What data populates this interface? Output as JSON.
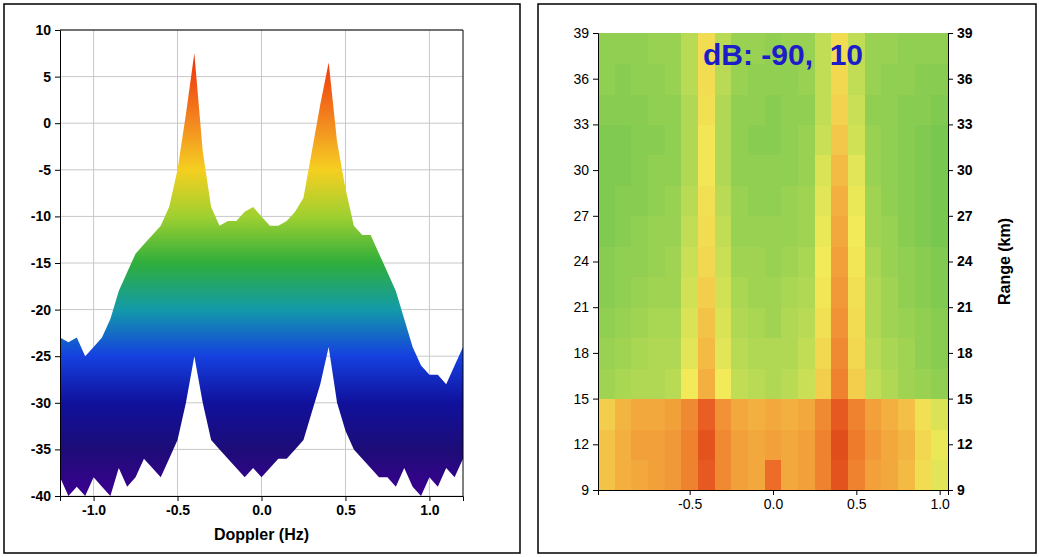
{
  "chart_data": [
    {
      "type": "area",
      "xlabel": "Doppler (Hz)",
      "x": [
        -1.2,
        -1.15,
        -1.1,
        -1.05,
        -1.0,
        -0.95,
        -0.9,
        -0.85,
        -0.8,
        -0.75,
        -0.7,
        -0.65,
        -0.6,
        -0.55,
        -0.5,
        -0.45,
        -0.4,
        -0.35,
        -0.3,
        -0.25,
        -0.2,
        -0.15,
        -0.1,
        -0.05,
        0,
        0.05,
        0.1,
        0.15,
        0.2,
        0.25,
        0.3,
        0.35,
        0.4,
        0.45,
        0.5,
        0.55,
        0.6,
        0.65,
        0.7,
        0.75,
        0.8,
        0.85,
        0.9,
        0.95,
        1.0,
        1.05,
        1.1,
        1.15,
        1.2
      ],
      "values": [
        -23,
        -23.5,
        -23,
        -25,
        -24,
        -23,
        -21,
        -18,
        -16,
        -14,
        -13,
        -12,
        -11,
        -9,
        -5,
        1,
        7.5,
        -3,
        -9,
        -11,
        -10.5,
        -10.5,
        -9.5,
        -9,
        -10,
        -11,
        -11,
        -10.5,
        -9.5,
        -8,
        -3,
        2,
        6.5,
        -2,
        -7,
        -11,
        -12,
        -12,
        -14,
        -16,
        -18,
        -21,
        -24,
        -26,
        -27,
        -27,
        -28,
        -26,
        -24
      ],
      "lower": [
        -38,
        -40,
        -39,
        -40,
        -38,
        -39,
        -40,
        -37,
        -39,
        -38,
        -36,
        -37,
        -38,
        -36,
        -34,
        -30,
        -25,
        -30,
        -34,
        -35,
        -36,
        -37,
        -38,
        -37,
        -38,
        -37,
        -36,
        -36,
        -35,
        -34,
        -31,
        -28,
        -24,
        -30,
        -33,
        -35,
        -36,
        -37,
        -38,
        -38,
        -39,
        -37,
        -39,
        -40,
        -38,
        -39,
        -37,
        -38,
        -36
      ],
      "xlim": [
        -1.2,
        1.2
      ],
      "xticks": [
        {
          "value": -1.0,
          "label": "-1.0"
        },
        -0.5,
        {
          "value": 0,
          "label": "0.0"
        },
        0.5,
        {
          "value": 1.0,
          "label": "1.0"
        }
      ],
      "ylim": [
        -40,
        10
      ],
      "yticks": [
        -40,
        -35,
        -30,
        -25,
        -20,
        -15,
        -10,
        -5,
        0,
        5,
        10
      ],
      "grid": true
    },
    {
      "type": "heatmap",
      "annotation": "dB: -90,  10",
      "ylabel": "Range (km)",
      "x": [
        -1.0,
        -0.9,
        -0.8,
        -0.7,
        -0.6,
        -0.5,
        -0.4,
        -0.3,
        -0.2,
        -0.1,
        0,
        0.1,
        0.2,
        0.3,
        0.4,
        0.5,
        0.6,
        0.7,
        0.8,
        0.9,
        1.0
      ],
      "y": [
        10,
        12,
        14,
        16,
        18,
        20,
        22,
        24,
        26,
        28,
        30,
        32,
        34,
        36,
        38
      ],
      "z": [
        [
          -22,
          -18,
          -17,
          -16,
          -15,
          -12,
          -6,
          -13,
          -16,
          -17,
          -9,
          -17,
          -16,
          -12,
          -5,
          -12,
          -16,
          -17,
          -20,
          -27,
          -32
        ],
        [
          -22,
          -18,
          -16,
          -16,
          -15,
          -12,
          -5,
          -13,
          -16,
          -17,
          -16,
          -17,
          -16,
          -12,
          -4,
          -11,
          -15,
          -17,
          -19,
          -26,
          -31
        ],
        [
          -24,
          -19,
          -17,
          -17,
          -16,
          -13,
          -7,
          -14,
          -17,
          -18,
          -17,
          -18,
          -17,
          -13,
          -6,
          -12,
          -16,
          -18,
          -21,
          -28,
          -33
        ],
        [
          -40,
          -39,
          -38,
          -38,
          -37,
          -30,
          -18,
          -30,
          -36,
          -37,
          -38,
          -37,
          -35,
          -24,
          -12,
          -24,
          -36,
          -38,
          -40,
          -41,
          -42
        ],
        [
          -41,
          -40,
          -39,
          -38,
          -38,
          -32,
          -20,
          -32,
          -37,
          -38,
          -38,
          -38,
          -36,
          -26,
          -13,
          -26,
          -37,
          -39,
          -40,
          -42,
          -43
        ],
        [
          -42,
          -41,
          -40,
          -39,
          -39,
          -33,
          -22,
          -33,
          -38,
          -39,
          -40,
          -38,
          -37,
          -28,
          -14,
          -27,
          -38,
          -40,
          -41,
          -42,
          -43
        ],
        [
          -43,
          -42,
          -41,
          -40,
          -40,
          -34,
          -24,
          -34,
          -39,
          -40,
          -40,
          -39,
          -38,
          -29,
          -15,
          -28,
          -38,
          -40,
          -42,
          -43,
          -44
        ],
        [
          -43,
          -42,
          -42,
          -41,
          -40,
          -35,
          -26,
          -35,
          -40,
          -40,
          -41,
          -40,
          -39,
          -30,
          -16,
          -29,
          -39,
          -41,
          -42,
          -43,
          -44
        ],
        [
          -44,
          -43,
          -42,
          -41,
          -41,
          -36,
          -27,
          -36,
          -41,
          -41,
          -41,
          -41,
          -40,
          -31,
          -17,
          -30,
          -40,
          -41,
          -43,
          -44,
          -45
        ],
        [
          -44,
          -43,
          -43,
          -42,
          -41,
          -37,
          -28,
          -37,
          -41,
          -42,
          -42,
          -41,
          -40,
          -32,
          -18,
          -31,
          -40,
          -42,
          -43,
          -44,
          -45
        ],
        [
          -44,
          -44,
          -43,
          -42,
          -42,
          -38,
          -29,
          -38,
          -42,
          -42,
          -42,
          -42,
          -41,
          -33,
          -20,
          -32,
          -41,
          -42,
          -43,
          -44,
          -45
        ],
        [
          -44,
          -44,
          -43,
          -43,
          -42,
          -38,
          -29,
          -38,
          -42,
          -43,
          -43,
          -42,
          -41,
          -35,
          -23,
          -34,
          -41,
          -42,
          -43,
          -44,
          -45
        ],
        [
          -43,
          -43,
          -43,
          -42,
          -42,
          -38,
          -28,
          -38,
          -42,
          -42,
          -43,
          -42,
          -42,
          -36,
          -25,
          -35,
          -42,
          -42,
          -43,
          -43,
          -44
        ],
        [
          -42,
          -43,
          -42,
          -42,
          -41,
          -37,
          -27,
          -37,
          -41,
          -42,
          -42,
          -42,
          -41,
          -36,
          -26,
          -36,
          -41,
          -42,
          -42,
          -43,
          -43
        ],
        [
          -42,
          -42,
          -42,
          -41,
          -41,
          -37,
          -27,
          -37,
          -41,
          -41,
          -42,
          -41,
          -41,
          -36,
          -27,
          -36,
          -41,
          -41,
          -42,
          -42,
          -42
        ]
      ],
      "zlim": [
        -90,
        10
      ],
      "xlim": [
        -1.05,
        1.05
      ],
      "xticks": [
        -0.5,
        {
          "value": 0,
          "label": "0.0"
        },
        0.5,
        {
          "value": 1.0,
          "label": "1.0"
        }
      ],
      "ylim": [
        9,
        39
      ],
      "yticks": [
        9,
        12,
        15,
        18,
        21,
        24,
        27,
        30,
        33,
        36,
        39
      ],
      "grid": false
    }
  ]
}
